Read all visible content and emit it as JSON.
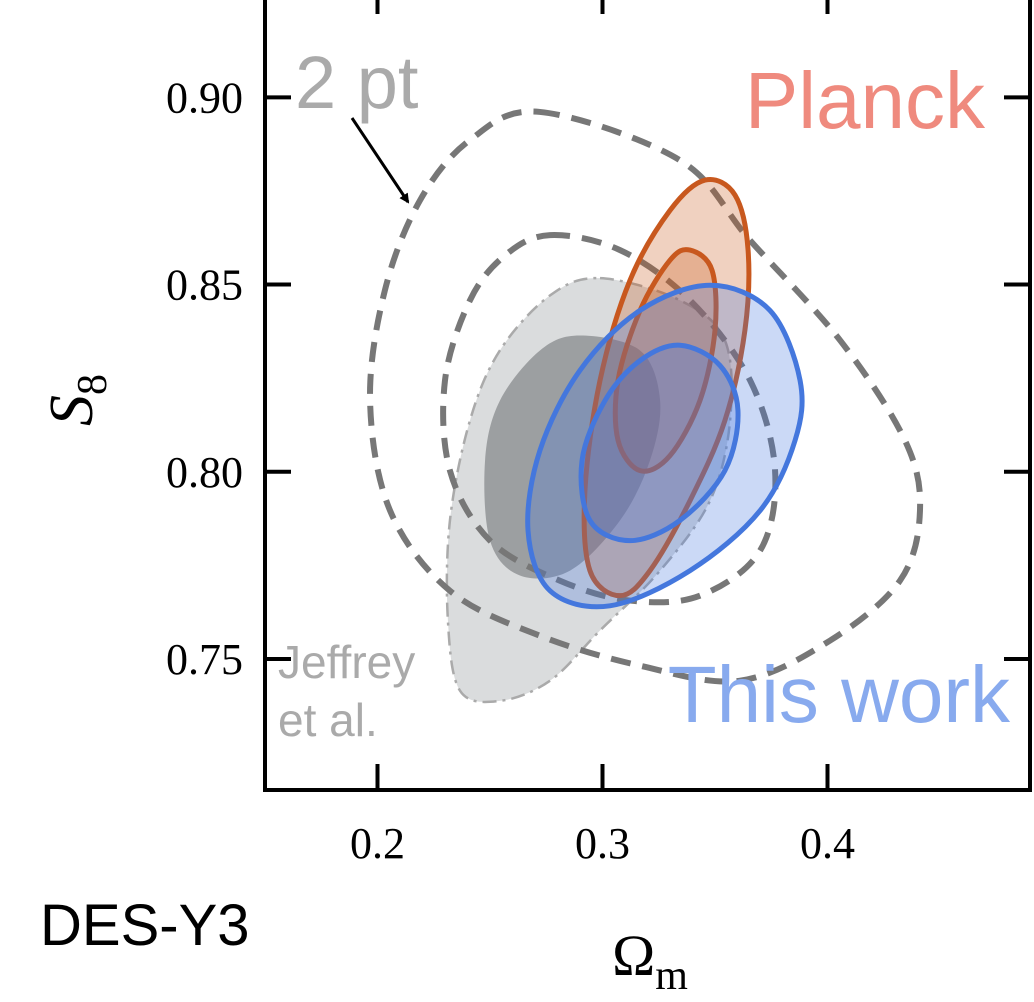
{
  "chart_data": {
    "type": "contour",
    "title": "DES-Y3",
    "xlabel": [
      "Ω",
      "m"
    ],
    "ylabel": [
      "S",
      "8"
    ],
    "xlim": [
      0.15,
      0.49
    ],
    "ylim": [
      0.715,
      0.926
    ],
    "xticks": [
      0.2,
      0.3,
      0.4
    ],
    "yticks": [
      0.75,
      {
        "value": 0.8,
        "label": "0.80"
      },
      0.85,
      {
        "value": 0.9,
        "label": "0.90"
      }
    ],
    "series": [
      {
        "label": [
          "Jeffrey",
          "et al."
        ],
        "color": "#aaaaaa",
        "style": "filled-dashdot",
        "contours": [
          {
            "x": [
              0.2989,
              0.3344,
              0.3544,
              0.3567,
              0.3478,
              0.3256,
              0.2989,
              0.2767,
              0.2544,
              0.2367,
              0.2313,
              0.2322,
              0.2411,
              0.2544,
              0.2767
            ],
            "y": [
              0.8517,
              0.8458,
              0.8351,
              0.8137,
              0.7923,
              0.7736,
              0.7576,
              0.7442,
              0.7388,
              0.7415,
              0.7602,
              0.787,
              0.8137,
              0.8324,
              0.8471
            ]
          },
          {
            "x": [
              0.29,
              0.3167,
              0.3256,
              0.3211,
              0.3078,
              0.2856,
              0.2633,
              0.25,
              0.2478,
              0.2544,
              0.2722
            ],
            "y": [
              0.8364,
              0.8324,
              0.819,
              0.803,
              0.787,
              0.7736,
              0.7723,
              0.7816,
              0.803,
              0.819,
              0.8324
            ]
          }
        ]
      },
      {
        "label": [
          "2 pt"
        ],
        "color": "#777777",
        "style": "dashed",
        "contours": [
          {
            "x": [
              0.2722,
              0.3344,
              0.3656,
              0.4056,
              0.4344,
              0.4411,
              0.4322,
              0.4011,
              0.3611,
              0.3167,
              0.2722,
              0.2322,
              0.2056,
              0.1967,
              0.2033,
              0.2189,
              0.2411
            ],
            "y": [
              0.8961,
              0.8832,
              0.8618,
              0.8351,
              0.8084,
              0.7896,
              0.7709,
              0.7549,
              0.7442,
              0.7482,
              0.7562,
              0.7682,
              0.7896,
              0.819,
              0.8485,
              0.8725,
              0.8886
            ]
          },
          {
            "x": [
              0.2767,
              0.3078,
              0.3389,
              0.3656,
              0.3767,
              0.37,
              0.3433,
              0.3122,
              0.2811,
              0.25,
              0.2322,
              0.23,
              0.2411,
              0.2567
            ],
            "y": [
              0.8632,
              0.8592,
              0.8458,
              0.8244,
              0.8003,
              0.7789,
              0.7669,
              0.7656,
              0.7709,
              0.7816,
              0.8003,
              0.8244,
              0.8458,
              0.8578
            ]
          }
        ]
      },
      {
        "label": [
          "Planck"
        ],
        "color": "#c8581e",
        "label_color": "#ef8a7e",
        "style": "filled-solid",
        "contours": [
          {
            "x": [
              0.3456,
              0.3589,
              0.3647,
              0.3633,
              0.3544,
              0.3389,
              0.3211,
              0.3078,
              0.2944,
              0.2922,
              0.2989,
              0.3122,
              0.33
            ],
            "y": [
              0.8779,
              0.8739,
              0.8592,
              0.8378,
              0.8137,
              0.7923,
              0.7736,
              0.7669,
              0.7736,
              0.795,
              0.8244,
              0.8511,
              0.8698
            ]
          },
          {
            "x": [
              0.3389,
              0.3487,
              0.35,
              0.3433,
              0.33,
              0.3167,
              0.3069,
              0.3069,
              0.3167,
              0.33
            ],
            "y": [
              0.8592,
              0.8538,
              0.8378,
              0.819,
              0.8043,
              0.8003,
              0.8084,
              0.8244,
              0.8431,
              0.8565
            ]
          }
        ]
      },
      {
        "label": [
          "This work"
        ],
        "color": "#4477dd",
        "label_color": "#88aaee",
        "style": "filled-solid",
        "contours": [
          {
            "x": [
              0.3478,
              0.3744,
              0.3878,
              0.3856,
              0.37,
              0.3389,
              0.3033,
              0.2767,
              0.2669,
              0.2722,
              0.29,
              0.3167
            ],
            "y": [
              0.8498,
              0.8431,
              0.8244,
              0.8084,
              0.7896,
              0.7736,
              0.7642,
              0.7682,
              0.7843,
              0.8057,
              0.8271,
              0.8431
            ]
          },
          {
            "x": [
              0.3344,
              0.3522,
              0.3602,
              0.3544,
              0.3344,
              0.3122,
              0.2944,
              0.2909,
              0.3011,
              0.3167
            ],
            "y": [
              0.8338,
              0.8284,
              0.8164,
              0.8003,
              0.787,
              0.7816,
              0.787,
              0.803,
              0.819,
              0.8297
            ]
          }
        ]
      }
    ]
  }
}
